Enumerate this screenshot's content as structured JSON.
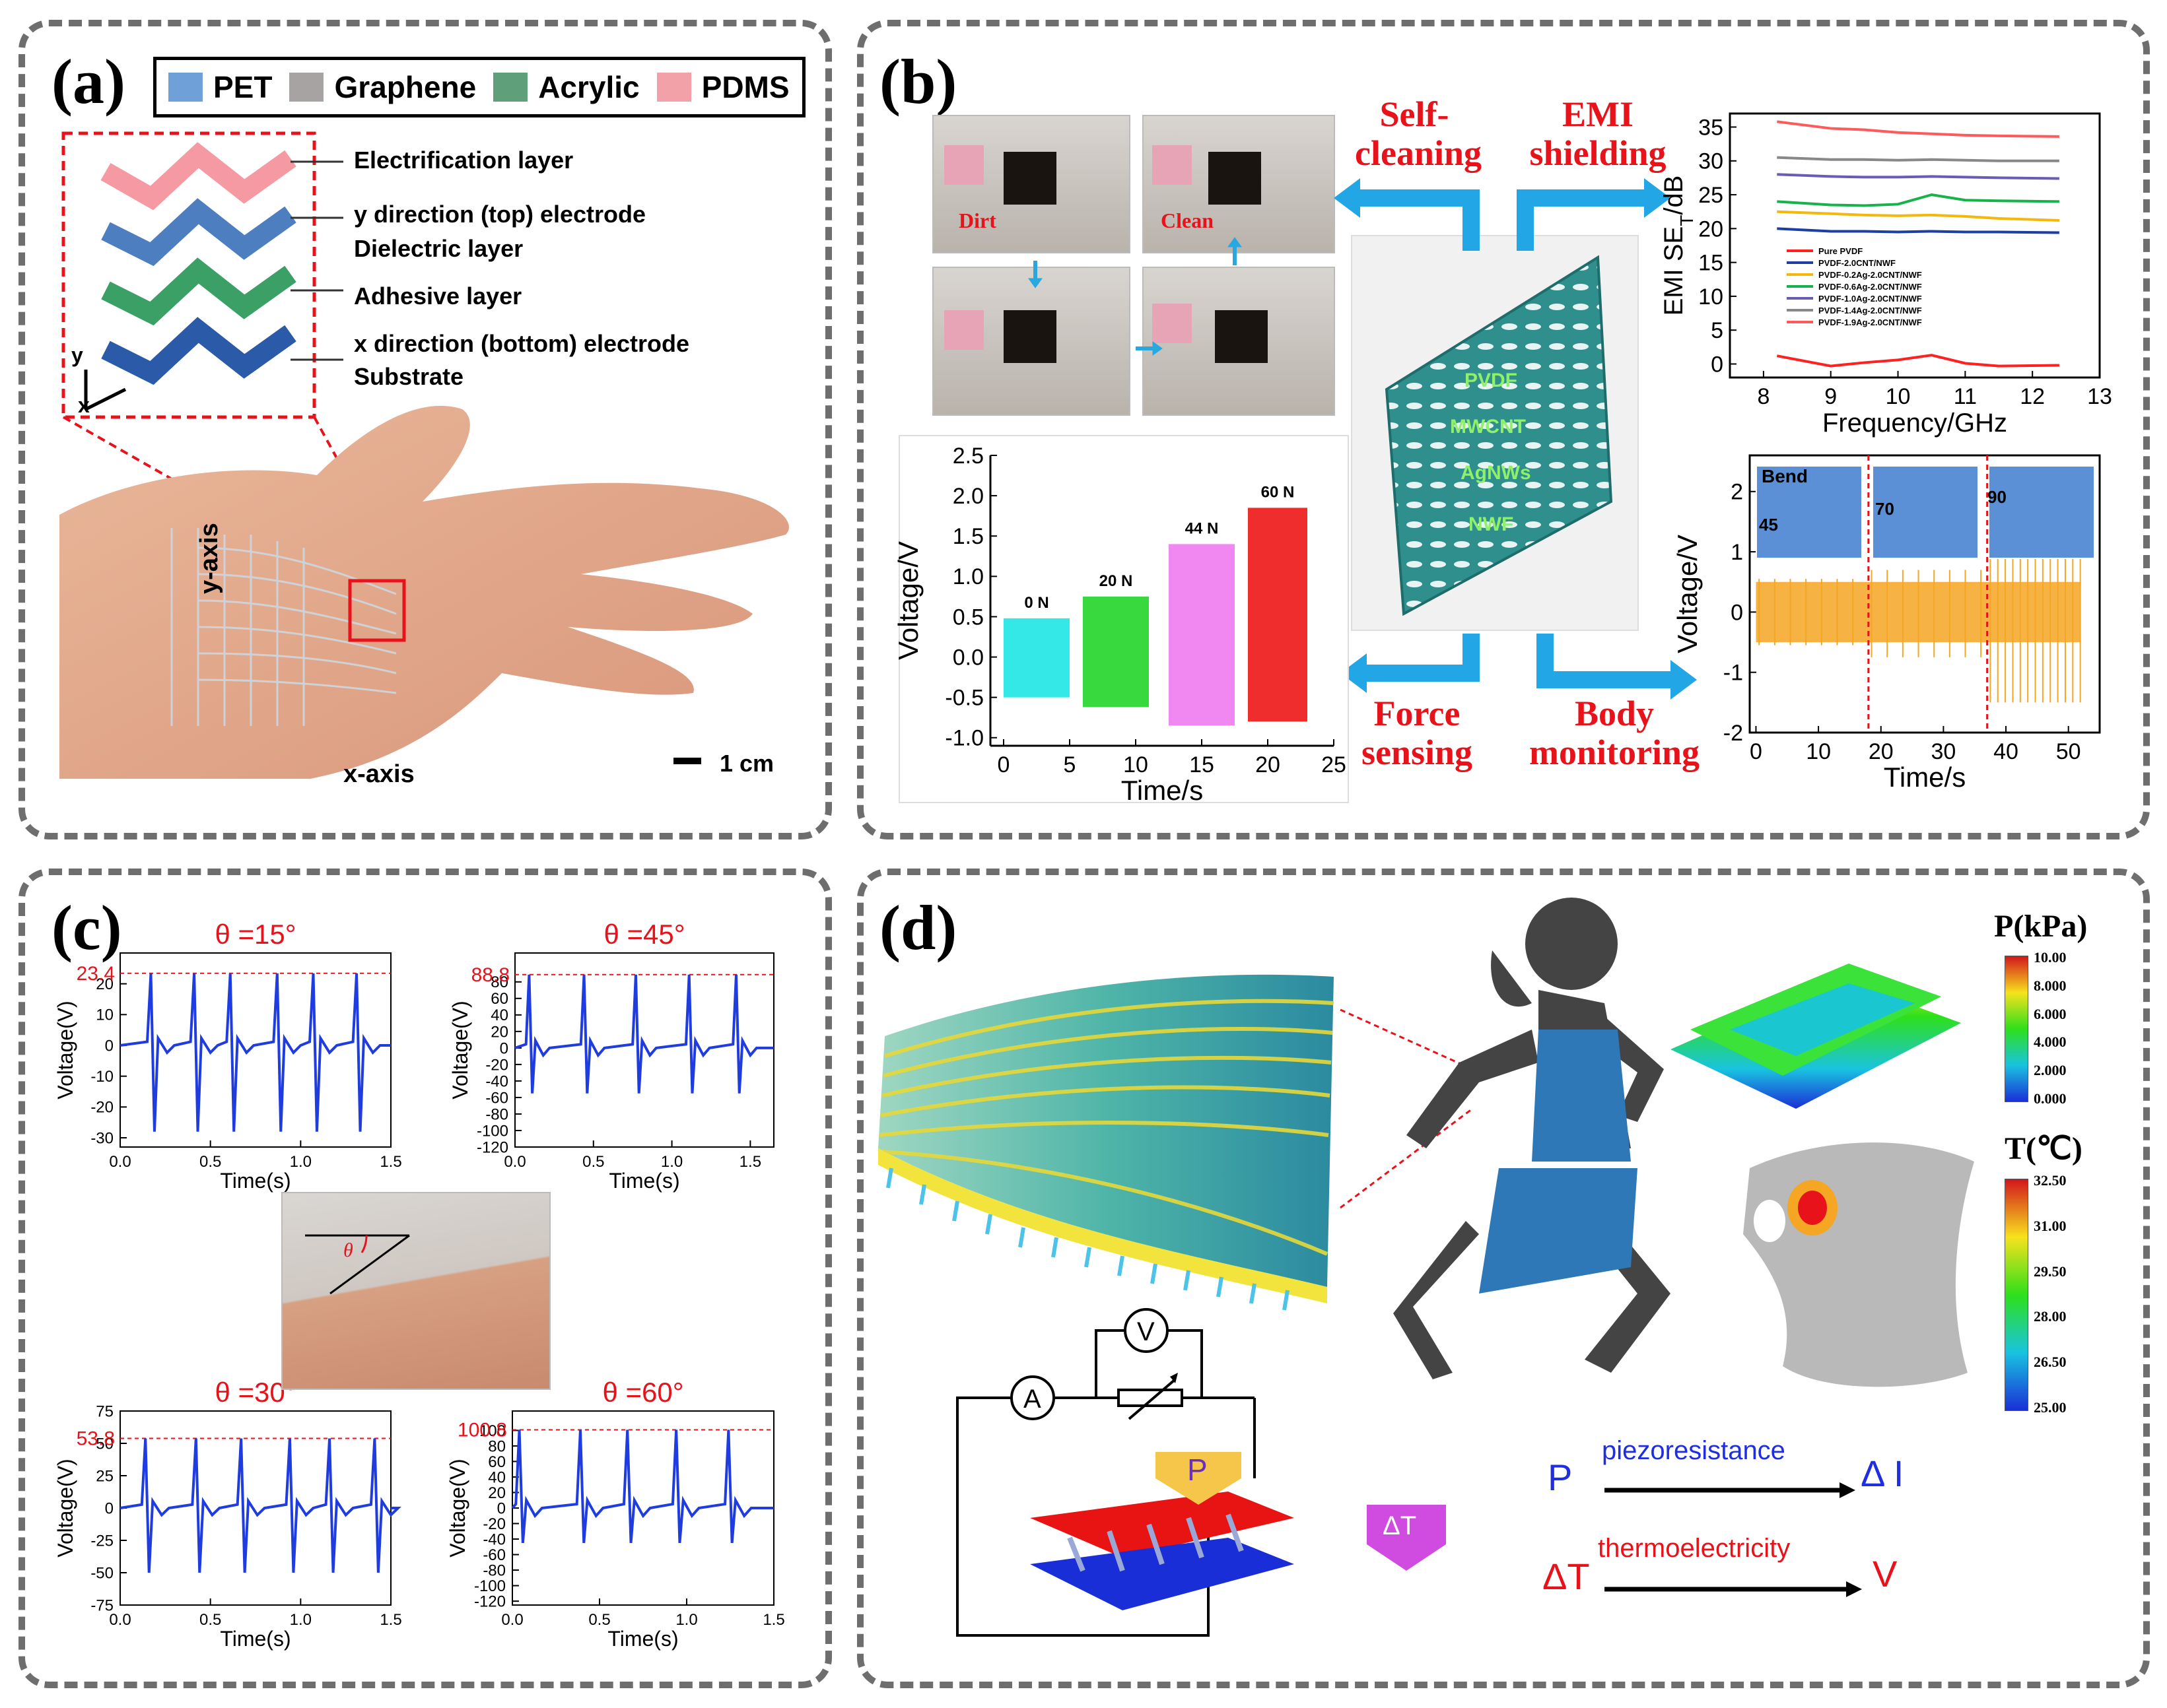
{
  "panels": {
    "a": {
      "label": "(a)",
      "legend": [
        {
          "name": "PET",
          "color": "#6fa0d8"
        },
        {
          "name": "Graphene",
          "color": "#a8a3a3"
        },
        {
          "name": "Acrylic",
          "color": "#5fa07a"
        },
        {
          "name": "PDMS",
          "color": "#f2a1a8"
        }
      ],
      "layers": [
        "Electrification layer",
        "y direction (top) electrode",
        "Dielectric layer",
        "Adhesive layer",
        "x direction (bottom) electrode",
        "Substrate"
      ],
      "axis_y": "y",
      "axis_x": "x",
      "hand_y_axis": "y-axis",
      "hand_x_axis": "x-axis",
      "scale_bar": "1 cm"
    },
    "b": {
      "label": "(b)",
      "self_cleaning": [
        "Self-",
        "cleaning"
      ],
      "emi_shielding": [
        "EMI",
        "shielding"
      ],
      "force_sensing": [
        "Force",
        "sensing"
      ],
      "body_monitoring": [
        "Body",
        "monitoring"
      ],
      "dirt": "Dirt",
      "clean": "Clean",
      "fabric_layers": [
        "PVDF",
        "MWCNT",
        "AgNWs",
        "NWF"
      ],
      "bend": "Bend",
      "bend_angles": [
        "45",
        "70",
        "90"
      ]
    },
    "c": {
      "label": "(c)",
      "theta_symbol": "θ"
    },
    "d": {
      "label": "(d)",
      "p_legend_title": "P(kPa)",
      "p_legend_ticks": [
        "10.00",
        "8.000",
        "6.000",
        "4.000",
        "2.000",
        "0.000"
      ],
      "t_legend_title": "T(℃)",
      "t_legend_ticks": [
        "32.50",
        "31.00",
        "29.50",
        "28.00",
        "26.50",
        "25.00"
      ],
      "circuit_v": "V",
      "circuit_a": "A",
      "arrow_p": "P",
      "arrow_dt": "ΔT",
      "eq1_left": "P",
      "eq1_mid": "piezoresistance",
      "eq1_right": "Δ I",
      "eq2_left": "ΔT",
      "eq2_mid": "thermoelectricity",
      "eq2_right": "V"
    }
  },
  "chart_data": [
    {
      "id": "b-emi",
      "type": "line",
      "xlabel": "Frequency/GHz",
      "ylabel": "EMI SE",
      "ylabel_sub": "T",
      "ylabel_unit": "/dB",
      "xlim": [
        7.5,
        13
      ],
      "ylim": [
        -2,
        37
      ],
      "xticks": [
        8,
        9,
        10,
        11,
        12,
        13
      ],
      "yticks": [
        0,
        5,
        10,
        15,
        20,
        25,
        30,
        35
      ],
      "x": [
        8.2,
        9.0,
        9.5,
        10.0,
        10.5,
        11.0,
        11.5,
        12.4
      ],
      "series": [
        {
          "name": "Pure PVDF",
          "color": "#ff2020",
          "values": [
            1.2,
            -0.3,
            0.2,
            0.6,
            1.3,
            0.1,
            -0.3,
            -0.2
          ]
        },
        {
          "name": "PVDF-2.0CNT/NWF",
          "color": "#1d3fa3",
          "values": [
            20.0,
            19.6,
            19.6,
            19.5,
            19.6,
            19.5,
            19.5,
            19.4
          ]
        },
        {
          "name": "PVDF-0.2Ag-2.0CNT/NWF",
          "color": "#f2b80c",
          "values": [
            22.5,
            22.2,
            22.0,
            21.9,
            22.0,
            21.8,
            21.5,
            21.2
          ]
        },
        {
          "name": "PVDF-0.6Ag-2.0CNT/NWF",
          "color": "#16b34a",
          "values": [
            24.0,
            23.5,
            23.4,
            23.6,
            25.0,
            24.2,
            24.1,
            24.0
          ]
        },
        {
          "name": "PVDF-1.0Ag-2.0CNT/NWF",
          "color": "#6a5bb5",
          "values": [
            28.0,
            27.7,
            27.6,
            27.6,
            27.7,
            27.6,
            27.5,
            27.4
          ]
        },
        {
          "name": "PVDF-1.4Ag-2.0CNT/NWF",
          "color": "#888888",
          "values": [
            30.5,
            30.2,
            30.2,
            30.1,
            30.2,
            30.1,
            30.0,
            30.0
          ]
        },
        {
          "name": "PVDF-1.9Ag-2.0CNT/NWF",
          "color": "#ff5a5a",
          "values": [
            35.8,
            34.8,
            34.6,
            34.2,
            34.0,
            33.8,
            33.7,
            33.6
          ]
        }
      ]
    },
    {
      "id": "b-force",
      "type": "area",
      "xlabel": "Time/s",
      "ylabel": "Voltage/V",
      "xlim": [
        -1,
        25
      ],
      "ylim": [
        -1.1,
        2.5
      ],
      "xticks": [
        0,
        5,
        10,
        15,
        20,
        25
      ],
      "yticks": [
        -1.0,
        -0.5,
        0.0,
        0.5,
        1.0,
        1.5,
        2.0,
        2.5
      ],
      "series": [
        {
          "name": "0 N",
          "color": "#1ee6e6",
          "x": [
            0,
            5
          ],
          "max": 0.48,
          "min": -0.5
        },
        {
          "name": "20 N",
          "color": "#22d42a",
          "x": [
            6,
            11
          ],
          "max": 0.75,
          "min": -0.62
        },
        {
          "name": "44 N",
          "color": "#f07af0",
          "x": [
            12.5,
            17.5
          ],
          "max": 1.4,
          "min": -0.85
        },
        {
          "name": "60 N",
          "color": "#ee1616",
          "x": [
            18.5,
            23
          ],
          "max": 1.85,
          "min": -0.8
        }
      ]
    },
    {
      "id": "b-body",
      "type": "line",
      "xlabel": "Time/s",
      "ylabel": "Voltage/V",
      "xlim": [
        -1,
        55
      ],
      "ylim": [
        -2,
        2.6
      ],
      "xticks": [
        0,
        10,
        20,
        30,
        40,
        50
      ],
      "yticks": [
        -2,
        -1,
        0,
        1,
        2
      ],
      "color": "#f5a623",
      "band": {
        "max": 0.5,
        "min": -0.5
      },
      "bend_segments": [
        {
          "angle": "45",
          "x": [
            0,
            18
          ],
          "max": 0.55,
          "min": -0.55
        },
        {
          "angle": "70",
          "x": [
            18,
            37
          ],
          "max": 0.7,
          "min": -0.75
        },
        {
          "angle": "90",
          "x": [
            37,
            52
          ],
          "max": 1.6,
          "min": -1.5
        }
      ]
    },
    {
      "id": "c-15",
      "type": "line",
      "title": "θ =15°",
      "peak_label": "23.4",
      "peak": 23.4,
      "xlabel": "Time(s)",
      "ylabel": "Voltage(V)",
      "xlim": [
        0,
        1.5
      ],
      "ylim": [
        -33,
        30
      ],
      "xticks": [
        0.0,
        0.5,
        1.0,
        1.5
      ],
      "yticks": [
        -30,
        -20,
        -10,
        0,
        10,
        20
      ],
      "peaks_x": [
        0.18,
        0.42,
        0.62,
        0.88,
        1.08,
        1.32
      ],
      "neg_min": -28
    },
    {
      "id": "c-45",
      "type": "line",
      "title": "θ =45°",
      "peak_label": "88.8",
      "peak": 88.8,
      "xlabel": "Time(s)",
      "ylabel": "Voltage(V)",
      "xlim": [
        0,
        1.65
      ],
      "ylim": [
        -120,
        115
      ],
      "xticks": [
        0.0,
        0.5,
        1.0,
        1.5
      ],
      "yticks": [
        -120,
        -100,
        -80,
        -60,
        -40,
        -20,
        0,
        20,
        40,
        60,
        80
      ],
      "peaks_x": [
        0.1,
        0.45,
        0.78,
        1.12,
        1.42
      ],
      "neg_min": -55
    },
    {
      "id": "c-30",
      "type": "line",
      "title": "θ =30°",
      "peak_label": "53.8",
      "peak": 53.8,
      "xlabel": "Time(s)",
      "ylabel": "Voltage(V)",
      "xlim": [
        0,
        1.5
      ],
      "ylim": [
        -75,
        75
      ],
      "xticks": [
        0.0,
        0.5,
        1.0,
        1.5
      ],
      "yticks": [
        -75,
        -50,
        -25,
        0,
        25,
        50,
        75
      ],
      "peaks_x": [
        0.15,
        0.43,
        0.68,
        0.95,
        1.17,
        1.42
      ],
      "neg_min": -50
    },
    {
      "id": "c-60",
      "type": "line",
      "title": "θ =60°",
      "peak_label": "100.8",
      "peak": 100.8,
      "xlabel": "Time(s)",
      "ylabel": "Voltage(V)",
      "xlim": [
        0,
        1.5
      ],
      "ylim": [
        -125,
        125
      ],
      "xticks": [
        0.0,
        0.5,
        1.0,
        1.5
      ],
      "yticks": [
        -120,
        -100,
        -80,
        -60,
        -40,
        -20,
        0,
        20,
        40,
        60,
        80,
        100
      ],
      "peaks_x": [
        0.05,
        0.4,
        0.67,
        0.95,
        1.25
      ],
      "neg_min": -45
    }
  ]
}
